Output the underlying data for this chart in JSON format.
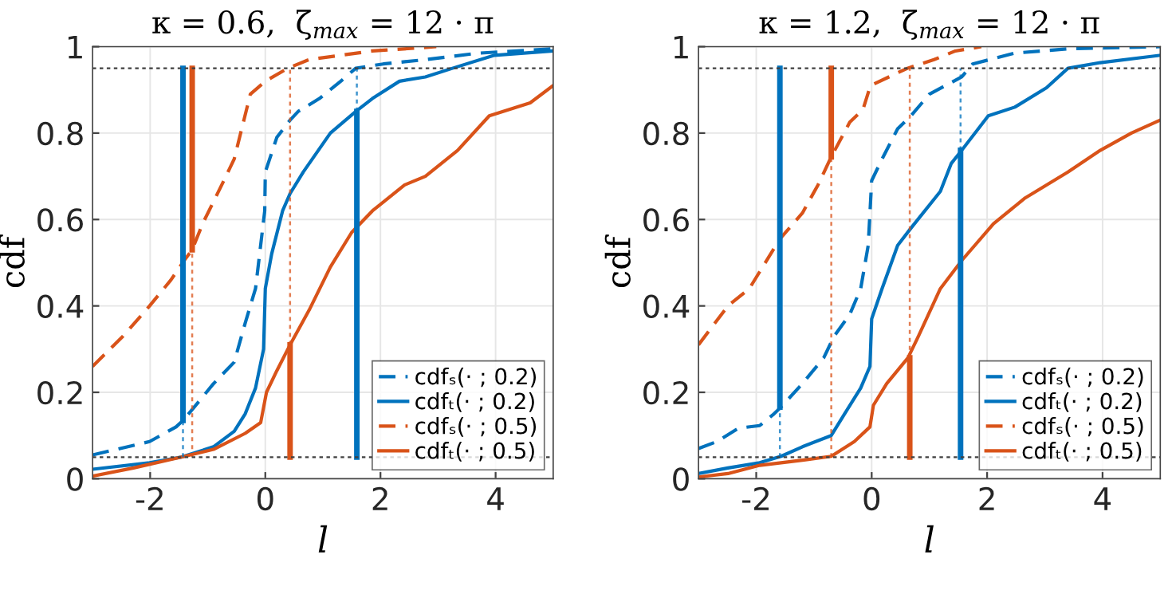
{
  "chart_data": [
    {
      "type": "line",
      "title": "κ = 0.6,  ζ$_{max}$ = 12 · π",
      "xlabel": "l",
      "ylabel": "cdf",
      "xlim": [
        -3,
        5
      ],
      "ylim": [
        0,
        1
      ],
      "xticks": [
        -2,
        0,
        2,
        4
      ],
      "yticks": [
        0,
        0.2,
        0.4,
        0.6,
        0.8,
        1
      ],
      "grid": true,
      "legend": "bottom right",
      "ref_lines": [
        {
          "axis": "y",
          "value": 0.95,
          "color": "#404040",
          "line_style": "dotted"
        },
        {
          "axis": "y",
          "value": 0.05,
          "color": "#404040",
          "line_style": "dotted"
        }
      ],
      "series": [
        {
          "name": "cdfₛ(· ; 0.2)",
          "color": "#0072bd",
          "line_style": "dashed",
          "x": [
            -3,
            -2.01,
            -1.55,
            -1.43,
            -1.27,
            -0.9,
            -0.54,
            -0.35,
            -0.17,
            -0.01,
            0,
            0.2,
            0.43,
            0.57,
            0.94,
            1.31,
            1.57,
            2.05,
            2.78,
            3.7,
            5
          ],
          "values": [
            0.055,
            0.086,
            0.12,
            0.135,
            0.16,
            0.22,
            0.27,
            0.36,
            0.44,
            0.62,
            0.71,
            0.79,
            0.83,
            0.85,
            0.88,
            0.92,
            0.95,
            0.96,
            0.97,
            0.985,
            0.995
          ]
        },
        {
          "name": "cdfₜ(· ; 0.2)",
          "color": "#0072bd",
          "line_style": "solid",
          "x": [
            -3,
            -2.01,
            -1.46,
            -0.9,
            -0.54,
            -0.35,
            -0.17,
            -0.03,
            0,
            0.11,
            0.3,
            0.43,
            0.66,
            1.13,
            1.57,
            1.86,
            2.33,
            2.78,
            3.25,
            3.98,
            5
          ],
          "values": [
            0.022,
            0.037,
            0.05,
            0.074,
            0.11,
            0.15,
            0.21,
            0.3,
            0.44,
            0.52,
            0.62,
            0.66,
            0.71,
            0.8,
            0.85,
            0.88,
            0.92,
            0.93,
            0.95,
            0.98,
            0.99
          ]
        },
        {
          "name": "cdfₛ(· ; 0.5)",
          "color": "#d95319",
          "line_style": "dashed",
          "x": [
            -3,
            -2.47,
            -2.01,
            -1.64,
            -1.41,
            -1.27,
            -1.09,
            -0.72,
            -0.54,
            -0.26,
            0,
            0.39,
            0.76,
            1.86,
            2.97
          ],
          "values": [
            0.26,
            0.33,
            0.4,
            0.46,
            0.505,
            0.53,
            0.59,
            0.69,
            0.74,
            0.89,
            0.92,
            0.95,
            0.97,
            0.99,
            1.0
          ]
        },
        {
          "name": "cdfₜ(· ; 0.5)",
          "color": "#d95319",
          "line_style": "solid",
          "x": [
            -3,
            -2.29,
            -1.46,
            -0.9,
            -0.35,
            -0.08,
            0.02,
            0.2,
            0.43,
            0.76,
            1.13,
            1.5,
            1.86,
            2.42,
            2.78,
            3.34,
            3.89,
            4.6,
            5
          ],
          "values": [
            0.006,
            0.025,
            0.05,
            0.068,
            0.105,
            0.13,
            0.2,
            0.25,
            0.31,
            0.39,
            0.49,
            0.57,
            0.62,
            0.68,
            0.7,
            0.76,
            0.84,
            0.87,
            0.91
          ]
        },
        {
          "color": "#0072bd",
          "line_style": "solid",
          "x": [
            -1.43,
            -1.43
          ],
          "values": [
            0.135,
            0.95
          ]
        },
        {
          "color": "#0072bd",
          "line_style": "dotted",
          "x": [
            -1.43,
            -1.43
          ],
          "values": [
            0.05,
            0.135
          ]
        },
        {
          "color": "#d95319",
          "line_style": "solid",
          "x": [
            -1.27,
            -1.27
          ],
          "values": [
            0.53,
            0.95
          ]
        },
        {
          "color": "#d95319",
          "line_style": "dotted",
          "x": [
            -1.27,
            -1.27
          ],
          "values": [
            0.05,
            0.53
          ]
        },
        {
          "color": "#d95319",
          "line_style": "solid",
          "x": [
            0.43,
            0.43
          ],
          "values": [
            0.05,
            0.31
          ]
        },
        {
          "color": "#d95319",
          "line_style": "dotted",
          "x": [
            0.43,
            0.43
          ],
          "values": [
            0.31,
            0.95
          ]
        },
        {
          "color": "#0072bd",
          "line_style": "solid",
          "x": [
            1.59,
            1.59
          ],
          "values": [
            0.05,
            0.85
          ]
        },
        {
          "color": "#0072bd",
          "line_style": "dotted",
          "x": [
            1.59,
            1.59
          ],
          "values": [
            0.85,
            0.95
          ]
        }
      ]
    },
    {
      "type": "line",
      "title": "κ = 1.2,  ζ$_{max}$ = 12 · π",
      "xlabel": "l",
      "ylabel": "cdf",
      "xlim": [
        -3,
        5
      ],
      "ylim": [
        0,
        1
      ],
      "xticks": [
        -2,
        0,
        2,
        4
      ],
      "yticks": [
        0,
        0.2,
        0.4,
        0.6,
        0.8,
        1
      ],
      "grid": true,
      "legend": "bottom right",
      "ref_lines": [
        {
          "axis": "y",
          "value": 0.95,
          "color": "#404040",
          "line_style": "dotted"
        },
        {
          "axis": "y",
          "value": 0.05,
          "color": "#404040",
          "line_style": "dotted"
        }
      ],
      "series": [
        {
          "name": "cdfₛ(· ; 0.2)",
          "color": "#0072bd",
          "line_style": "dashed",
          "x": [
            -3,
            -2.68,
            -2.31,
            -1.94,
            -1.71,
            -1.57,
            -1.2,
            -0.83,
            -0.65,
            -0.38,
            -0.19,
            -0.06,
            0,
            0.18,
            0.45,
            0.68,
            1.0,
            1.56,
            1.75,
            2.48,
            3.4,
            5
          ],
          "values": [
            0.07,
            0.086,
            0.117,
            0.123,
            0.148,
            0.166,
            0.22,
            0.28,
            0.33,
            0.38,
            0.44,
            0.54,
            0.69,
            0.74,
            0.81,
            0.84,
            0.89,
            0.93,
            0.96,
            0.985,
            0.995,
            1.0
          ]
        },
        {
          "name": "cdfₜ(· ; 0.2)",
          "color": "#0072bd",
          "line_style": "solid",
          "x": [
            -3,
            -2.49,
            -1.94,
            -1.57,
            -1.2,
            -0.7,
            -0.47,
            -0.19,
            -0.03,
            0,
            0.18,
            0.45,
            0.68,
            1.19,
            1.38,
            1.56,
            2.02,
            2.48,
            3.03,
            3.4,
            3.96,
            5
          ],
          "values": [
            0.012,
            0.025,
            0.037,
            0.052,
            0.074,
            0.1,
            0.15,
            0.21,
            0.26,
            0.37,
            0.44,
            0.54,
            0.58,
            0.665,
            0.73,
            0.76,
            0.84,
            0.86,
            0.905,
            0.95,
            0.963,
            0.98
          ]
        },
        {
          "name": "cdfₛ(· ; 0.5)",
          "color": "#d95319",
          "line_style": "dashed",
          "x": [
            -3,
            -2.49,
            -2.12,
            -1.59,
            -1.2,
            -0.93,
            -0.7,
            -0.38,
            -0.15,
            -0.02,
            0.62,
            1.08,
            1.45,
            1.9
          ],
          "values": [
            0.31,
            0.4,
            0.44,
            0.555,
            0.615,
            0.68,
            0.745,
            0.825,
            0.855,
            0.91,
            0.95,
            0.97,
            0.99,
            1.0
          ]
        },
        {
          "name": "cdfₜ(· ; 0.5)",
          "color": "#d95319",
          "line_style": "solid",
          "x": [
            -3,
            -2.49,
            -1.94,
            -1.2,
            -0.7,
            -0.3,
            -0.03,
            0.03,
            0.26,
            0.63,
            0.81,
            1.19,
            1.56,
            2.11,
            2.66,
            3.4,
            3.96,
            4.5,
            5
          ],
          "values": [
            0.004,
            0.012,
            0.031,
            0.043,
            0.052,
            0.086,
            0.12,
            0.17,
            0.22,
            0.28,
            0.33,
            0.44,
            0.505,
            0.59,
            0.65,
            0.71,
            0.76,
            0.8,
            0.83
          ]
        },
        {
          "color": "#0072bd",
          "line_style": "solid",
          "x": [
            -1.59,
            -1.59
          ],
          "values": [
            0.166,
            0.95
          ]
        },
        {
          "color": "#0072bd",
          "line_style": "dotted",
          "x": [
            -1.59,
            -1.59
          ],
          "values": [
            0.05,
            0.166
          ]
        },
        {
          "color": "#d95319",
          "line_style": "solid",
          "x": [
            -0.7,
            -0.7
          ],
          "values": [
            0.745,
            0.95
          ]
        },
        {
          "color": "#d95319",
          "line_style": "dotted",
          "x": [
            -0.7,
            -0.7
          ],
          "values": [
            0.05,
            0.745
          ]
        },
        {
          "color": "#d95319",
          "line_style": "solid",
          "x": [
            0.66,
            0.66
          ],
          "values": [
            0.05,
            0.28
          ]
        },
        {
          "color": "#d95319",
          "line_style": "dotted",
          "x": [
            0.66,
            0.66
          ],
          "values": [
            0.28,
            0.95
          ]
        },
        {
          "color": "#0072bd",
          "line_style": "solid",
          "x": [
            1.54,
            1.54
          ],
          "values": [
            0.05,
            0.76
          ]
        },
        {
          "color": "#0072bd",
          "line_style": "dotted",
          "x": [
            1.54,
            1.54
          ],
          "values": [
            0.76,
            0.95
          ]
        }
      ]
    }
  ]
}
